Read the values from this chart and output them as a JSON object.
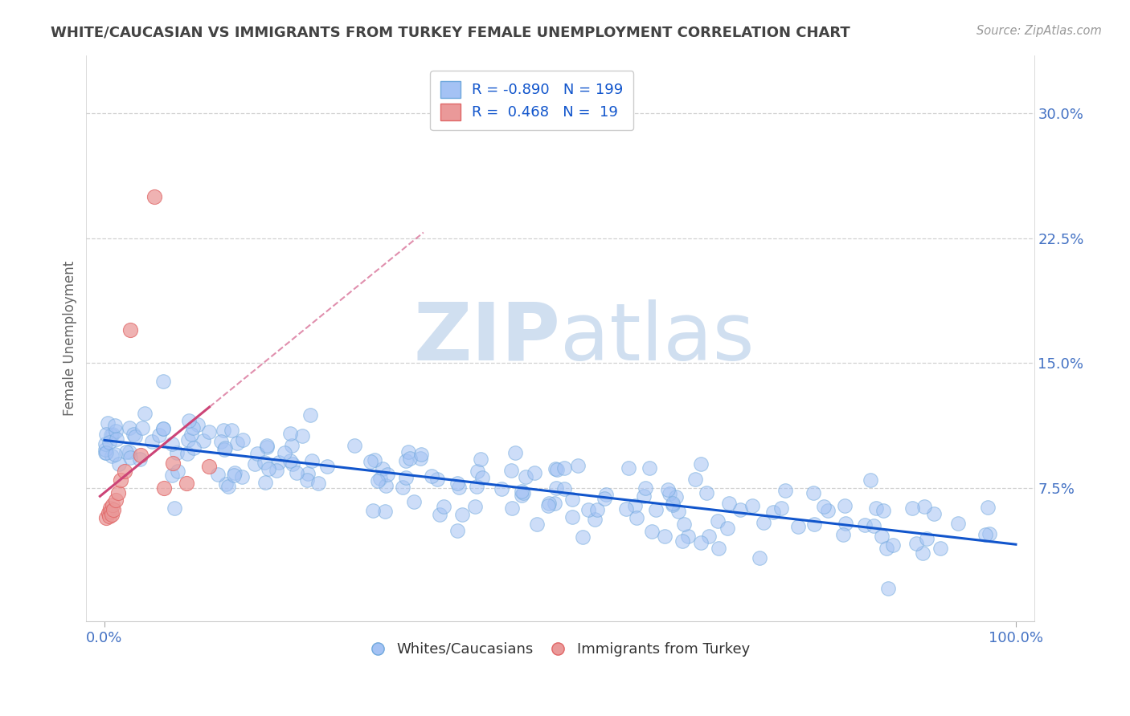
{
  "title": "WHITE/CAUCASIAN VS IMMIGRANTS FROM TURKEY FEMALE UNEMPLOYMENT CORRELATION CHART",
  "source": "Source: ZipAtlas.com",
  "ylabel": "Female Unemployment",
  "xlim": [
    -0.02,
    1.02
  ],
  "ylim": [
    -0.005,
    0.335
  ],
  "ytick_labels": [
    "7.5%",
    "15.0%",
    "22.5%",
    "30.0%"
  ],
  "ytick_values": [
    0.075,
    0.15,
    0.225,
    0.3
  ],
  "legend_r_blue": "-0.890",
  "legend_n_blue": "199",
  "legend_r_pink": "0.468",
  "legend_n_pink": "19",
  "blue_scatter_color": "#a4c2f4",
  "blue_scatter_edge": "#6fa8dc",
  "pink_scatter_color": "#ea9999",
  "pink_scatter_edge": "#e06666",
  "blue_line_color": "#1155cc",
  "pink_line_color": "#cc4477",
  "watermark_color": "#d0dff0",
  "background_color": "#ffffff",
  "title_color": "#434343",
  "axis_label_color": "#666666",
  "tick_label_color": "#4472c4",
  "grid_color": "#cccccc",
  "legend_box_color": "#ffffff",
  "legend_edge_color": "#cccccc",
  "bottom_legend_label_color": "#333333"
}
